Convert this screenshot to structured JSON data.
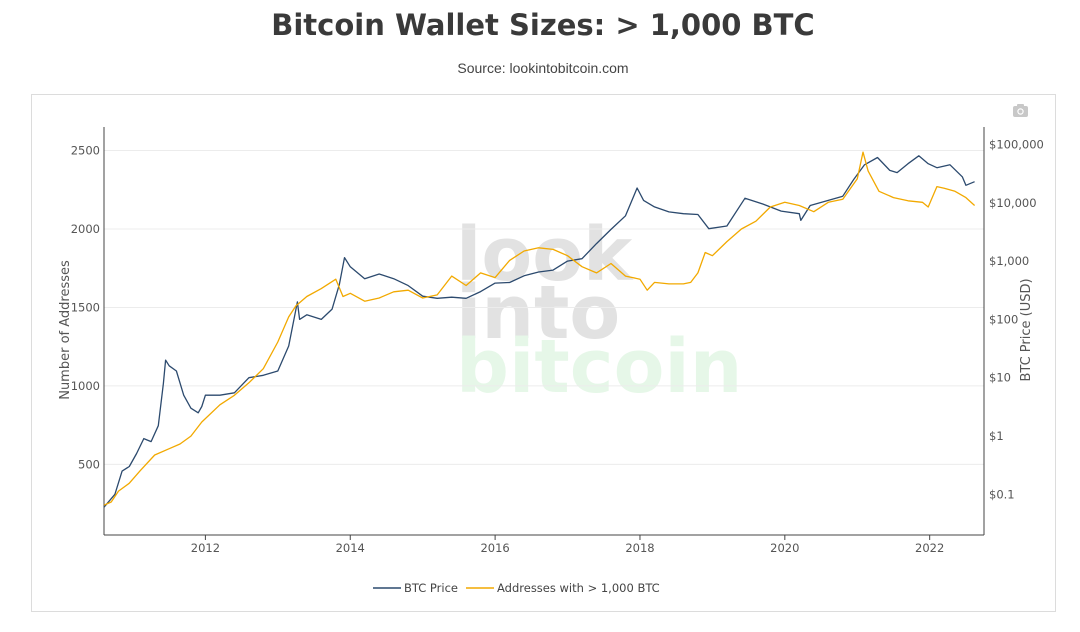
{
  "header": {
    "title": "Bitcoin Wallet Sizes: > 1,000 BTC",
    "subtitle": "Source: lookintobitcoin.com"
  },
  "watermark": {
    "lines": [
      "look",
      "into",
      "bitcoin"
    ],
    "colors": [
      "#e2e2e2",
      "#e2e2e2",
      "#e6f7e8"
    ]
  },
  "toolbar": {
    "camera_icon": "camera-icon"
  },
  "chart_data": {
    "type": "line",
    "x_ticks": [
      2012,
      2014,
      2016,
      2018,
      2020,
      2022
    ],
    "xlim": [
      2010.6,
      2022.75
    ],
    "y_left": {
      "label": "Number of Addresses",
      "ticks": [
        500,
        1000,
        1500,
        2000,
        2500
      ],
      "range": [
        50,
        2650
      ]
    },
    "y_right": {
      "label": "BTC Price (USD)",
      "scale": "log",
      "ticks": [
        0.1,
        1,
        10,
        100,
        1000,
        10000,
        100000
      ],
      "tick_labels": [
        "$0.1",
        "$1",
        "$10",
        "$100",
        "$1,000",
        "$10,000",
        "$100,000"
      ],
      "range": [
        0.02,
        200000
      ]
    },
    "grid": true,
    "legend_position": "bottom",
    "series": [
      {
        "name": "BTC Price",
        "axis": "right",
        "color": "#2c4a6e",
        "points": [
          [
            2010.6,
            0.06
          ],
          [
            2010.75,
            0.1
          ],
          [
            2010.85,
            0.25
          ],
          [
            2010.95,
            0.3
          ],
          [
            2011.05,
            0.5
          ],
          [
            2011.15,
            0.9
          ],
          [
            2011.25,
            0.8
          ],
          [
            2011.35,
            1.5
          ],
          [
            2011.42,
            8
          ],
          [
            2011.45,
            20
          ],
          [
            2011.5,
            16
          ],
          [
            2011.6,
            13
          ],
          [
            2011.7,
            5
          ],
          [
            2011.8,
            3
          ],
          [
            2011.9,
            2.5
          ],
          [
            2011.95,
            3.2
          ],
          [
            2012.0,
            5
          ],
          [
            2012.2,
            5
          ],
          [
            2012.4,
            5.5
          ],
          [
            2012.6,
            10
          ],
          [
            2012.8,
            11
          ],
          [
            2013.0,
            13
          ],
          [
            2013.15,
            35
          ],
          [
            2013.27,
            200
          ],
          [
            2013.3,
            100
          ],
          [
            2013.4,
            120
          ],
          [
            2013.6,
            100
          ],
          [
            2013.75,
            150
          ],
          [
            2013.85,
            400
          ],
          [
            2013.92,
            1150
          ],
          [
            2014.0,
            800
          ],
          [
            2014.2,
            500
          ],
          [
            2014.4,
            600
          ],
          [
            2014.6,
            500
          ],
          [
            2014.8,
            380
          ],
          [
            2015.0,
            250
          ],
          [
            2015.2,
            230
          ],
          [
            2015.4,
            240
          ],
          [
            2015.6,
            230
          ],
          [
            2015.8,
            300
          ],
          [
            2016.0,
            420
          ],
          [
            2016.2,
            430
          ],
          [
            2016.4,
            560
          ],
          [
            2016.6,
            650
          ],
          [
            2016.8,
            700
          ],
          [
            2017.0,
            1000
          ],
          [
            2017.2,
            1100
          ],
          [
            2017.4,
            2000
          ],
          [
            2017.6,
            3500
          ],
          [
            2017.8,
            6000
          ],
          [
            2017.96,
            18000
          ],
          [
            2018.05,
            11000
          ],
          [
            2018.2,
            8500
          ],
          [
            2018.4,
            7000
          ],
          [
            2018.6,
            6500
          ],
          [
            2018.8,
            6300
          ],
          [
            2018.95,
            3600
          ],
          [
            2019.2,
            4000
          ],
          [
            2019.45,
            12000
          ],
          [
            2019.7,
            9500
          ],
          [
            2019.95,
            7200
          ],
          [
            2020.2,
            6500
          ],
          [
            2020.22,
            5000
          ],
          [
            2020.35,
            9000
          ],
          [
            2020.6,
            11000
          ],
          [
            2020.8,
            13000
          ],
          [
            2020.95,
            25000
          ],
          [
            2021.1,
            45000
          ],
          [
            2021.28,
            60000
          ],
          [
            2021.45,
            36000
          ],
          [
            2021.55,
            33000
          ],
          [
            2021.7,
            47000
          ],
          [
            2021.85,
            64000
          ],
          [
            2021.98,
            47000
          ],
          [
            2022.1,
            40000
          ],
          [
            2022.28,
            45000
          ],
          [
            2022.45,
            28000
          ],
          [
            2022.5,
            20000
          ],
          [
            2022.62,
            23000
          ]
        ]
      },
      {
        "name": "Addresses with > 1,000 BTC",
        "axis": "left",
        "color": "#f2a900",
        "points": [
          [
            2010.6,
            240
          ],
          [
            2010.7,
            260
          ],
          [
            2010.8,
            330
          ],
          [
            2010.95,
            380
          ],
          [
            2011.1,
            460
          ],
          [
            2011.3,
            560
          ],
          [
            2011.5,
            600
          ],
          [
            2011.65,
            630
          ],
          [
            2011.8,
            680
          ],
          [
            2011.95,
            770
          ],
          [
            2012.2,
            880
          ],
          [
            2012.4,
            940
          ],
          [
            2012.6,
            1020
          ],
          [
            2012.8,
            1110
          ],
          [
            2013.0,
            1280
          ],
          [
            2013.15,
            1440
          ],
          [
            2013.25,
            1510
          ],
          [
            2013.4,
            1570
          ],
          [
            2013.6,
            1620
          ],
          [
            2013.8,
            1680
          ],
          [
            2013.9,
            1570
          ],
          [
            2014.0,
            1590
          ],
          [
            2014.2,
            1540
          ],
          [
            2014.4,
            1560
          ],
          [
            2014.6,
            1600
          ],
          [
            2014.8,
            1610
          ],
          [
            2015.0,
            1560
          ],
          [
            2015.2,
            1580
          ],
          [
            2015.4,
            1700
          ],
          [
            2015.6,
            1640
          ],
          [
            2015.8,
            1720
          ],
          [
            2016.0,
            1690
          ],
          [
            2016.2,
            1800
          ],
          [
            2016.4,
            1860
          ],
          [
            2016.6,
            1880
          ],
          [
            2016.8,
            1870
          ],
          [
            2017.0,
            1830
          ],
          [
            2017.2,
            1760
          ],
          [
            2017.4,
            1720
          ],
          [
            2017.6,
            1780
          ],
          [
            2017.8,
            1700
          ],
          [
            2018.0,
            1680
          ],
          [
            2018.1,
            1610
          ],
          [
            2018.2,
            1660
          ],
          [
            2018.4,
            1650
          ],
          [
            2018.6,
            1650
          ],
          [
            2018.7,
            1660
          ],
          [
            2018.8,
            1720
          ],
          [
            2018.9,
            1850
          ],
          [
            2019.0,
            1830
          ],
          [
            2019.2,
            1920
          ],
          [
            2019.4,
            2000
          ],
          [
            2019.6,
            2050
          ],
          [
            2019.8,
            2140
          ],
          [
            2020.0,
            2170
          ],
          [
            2020.2,
            2150
          ],
          [
            2020.4,
            2110
          ],
          [
            2020.6,
            2170
          ],
          [
            2020.8,
            2190
          ],
          [
            2021.0,
            2320
          ],
          [
            2021.08,
            2490
          ],
          [
            2021.15,
            2370
          ],
          [
            2021.3,
            2240
          ],
          [
            2021.5,
            2200
          ],
          [
            2021.7,
            2180
          ],
          [
            2021.9,
            2170
          ],
          [
            2021.98,
            2140
          ],
          [
            2022.1,
            2270
          ],
          [
            2022.2,
            2260
          ],
          [
            2022.35,
            2240
          ],
          [
            2022.5,
            2200
          ],
          [
            2022.62,
            2150
          ]
        ]
      }
    ]
  }
}
